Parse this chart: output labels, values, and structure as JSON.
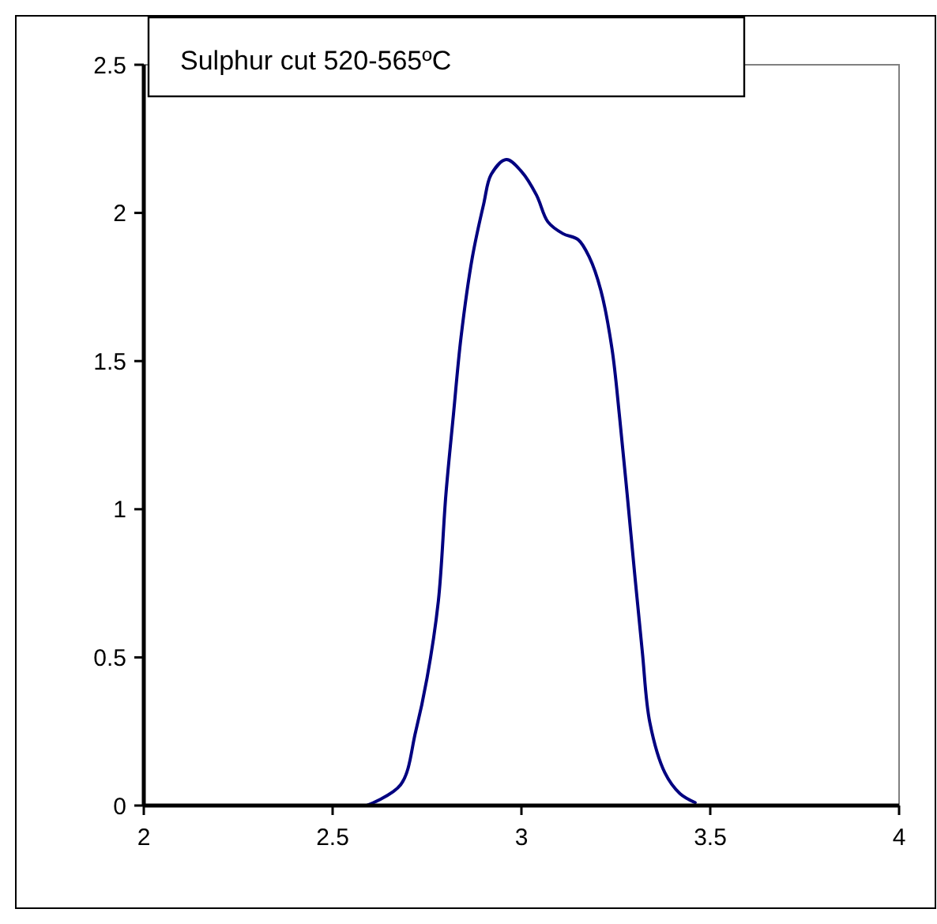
{
  "chart_data": {
    "type": "line",
    "title": "Sulphur cut 520-565ºC",
    "series": [
      {
        "color": "#000080",
        "x": [
          2.59,
          2.68,
          2.72,
          2.75,
          2.78,
          2.8,
          2.82,
          2.84,
          2.87,
          2.9,
          2.92,
          2.96,
          3.0,
          3.04,
          3.07,
          3.11,
          3.15,
          3.18,
          3.21,
          3.24,
          3.26,
          3.28,
          3.3,
          3.32,
          3.34,
          3.38,
          3.42,
          3.46
        ],
        "values": [
          0.0,
          0.07,
          0.25,
          0.43,
          0.69,
          1.05,
          1.32,
          1.58,
          1.85,
          2.03,
          2.13,
          2.18,
          2.14,
          2.06,
          1.97,
          1.93,
          1.91,
          1.85,
          1.74,
          1.54,
          1.31,
          1.05,
          0.78,
          0.52,
          0.28,
          0.11,
          0.04,
          0.01
        ]
      }
    ],
    "xlim": [
      2,
      4
    ],
    "xticks": [
      2,
      2.5,
      3,
      3.5,
      4
    ],
    "ylim": [
      0,
      2.5
    ],
    "yticks": [
      0,
      0.5,
      1,
      1.5,
      2,
      2.5
    ],
    "grid": false,
    "marker": "none",
    "line_style": "solid"
  }
}
